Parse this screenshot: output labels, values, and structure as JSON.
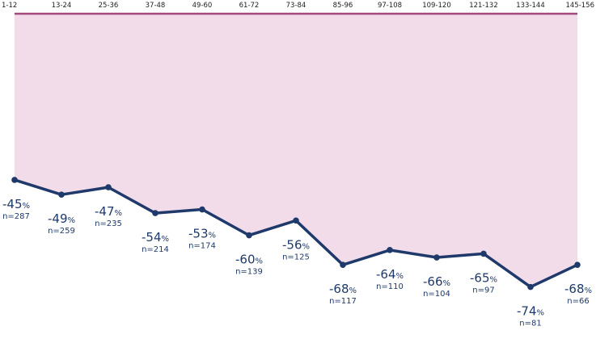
{
  "chart_data": {
    "type": "area",
    "categories": [
      "1-12",
      "13-24",
      "25-36",
      "37-48",
      "49-60",
      "61-72",
      "73-84",
      "85-96",
      "97-108",
      "109-120",
      "121-132",
      "133-144",
      "145-156"
    ],
    "values": [
      -45,
      -49,
      -47,
      -54,
      -53,
      -60,
      -56,
      -68,
      -64,
      -66,
      -65,
      -74,
      -68
    ],
    "value_labels": [
      "-45",
      "-49",
      "-47",
      "-54",
      "-53",
      "-60",
      "-56",
      "-68",
      "-64",
      "-66",
      "-65",
      "-74",
      "-68"
    ],
    "value_suffix": "%",
    "n_labels": [
      "n=287",
      "n=259",
      "n=235",
      "n=214",
      "n=174",
      "n=139",
      "n=125",
      "n=117",
      "n=110",
      "n=104",
      "n=97",
      "n=81",
      "n=66"
    ],
    "baseline": 0,
    "ylim": [
      -79,
      0
    ],
    "x_axis_position": "top",
    "grid": false,
    "legend": "none",
    "colors": {
      "line": "#1f3a6a",
      "fill": "#f2dcea",
      "baseline": "#a4487e",
      "text": "#1f3a6a",
      "tick_text": "#1d1d1d"
    }
  }
}
